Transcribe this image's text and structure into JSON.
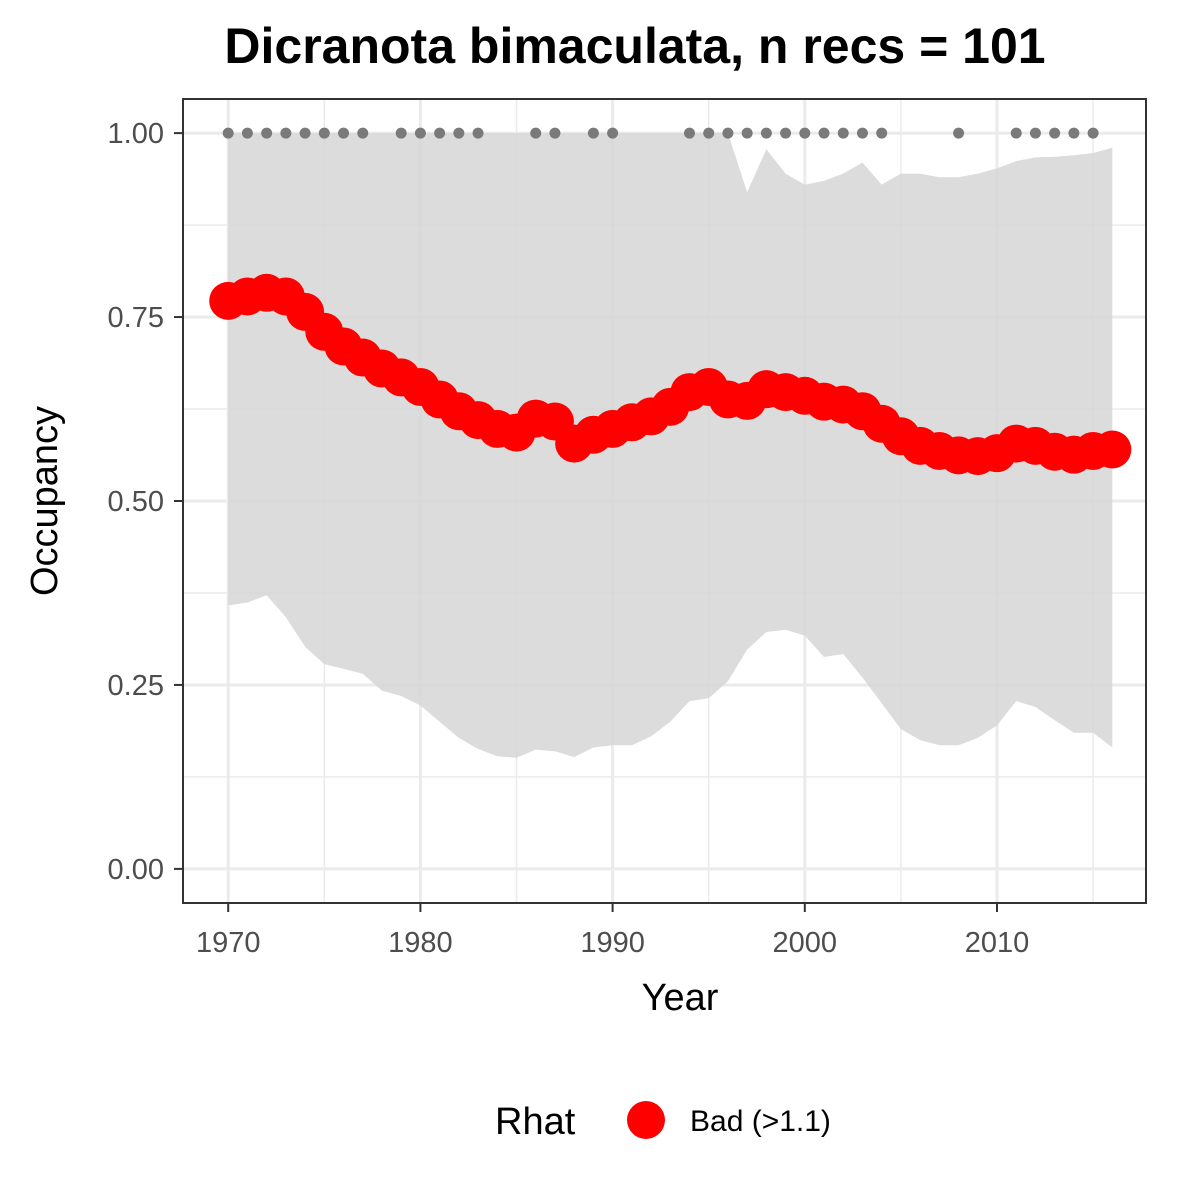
{
  "chart_data": {
    "type": "line",
    "title": "Dicranota bimaculata, n recs = 101",
    "xlabel": "Year",
    "ylabel": "Occupancy",
    "xlim": [
      1967.7,
      2017.7
    ],
    "ylim": [
      -0.045,
      1.045
    ],
    "x_ticks": [
      1970,
      1980,
      1990,
      2000,
      2010
    ],
    "x_tick_labels": [
      "1970",
      "1980",
      "1990",
      "2000",
      "2010"
    ],
    "y_ticks": [
      0,
      0.25,
      0.5,
      0.75,
      1.0
    ],
    "y_tick_labels": [
      "0.00",
      "0.25",
      "0.50",
      "0.75",
      "1.00"
    ],
    "grid": true,
    "legend": {
      "position": "bottom",
      "title": "Rhat",
      "entries": [
        {
          "label": "Bad (>1.1)",
          "color": "#ff0000"
        }
      ]
    },
    "colors": {
      "line": "#ff0000",
      "band": "#d6d6d6",
      "record_dots": "#7a7a7a",
      "grid": "#ebebeb",
      "panel_border": "#333333"
    },
    "series": [
      {
        "name": "Occupancy",
        "x": [
          1970,
          1971,
          1972,
          1973,
          1974,
          1975,
          1976,
          1977,
          1978,
          1979,
          1980,
          1981,
          1982,
          1983,
          1984,
          1985,
          1986,
          1987,
          1988,
          1989,
          1990,
          1991,
          1992,
          1993,
          1994,
          1995,
          1996,
          1997,
          1998,
          1999,
          2000,
          2001,
          2002,
          2003,
          2004,
          2005,
          2006,
          2007,
          2008,
          2009,
          2010,
          2011,
          2012,
          2013,
          2014,
          2015,
          2016
        ],
        "y": [
          0.772,
          0.778,
          0.783,
          0.778,
          0.757,
          0.73,
          0.71,
          0.695,
          0.68,
          0.668,
          0.655,
          0.638,
          0.622,
          0.61,
          0.598,
          0.593,
          0.612,
          0.608,
          0.578,
          0.59,
          0.598,
          0.607,
          0.615,
          0.628,
          0.648,
          0.655,
          0.638,
          0.636,
          0.652,
          0.648,
          0.643,
          0.635,
          0.631,
          0.622,
          0.605,
          0.588,
          0.575,
          0.568,
          0.562,
          0.561,
          0.565,
          0.578,
          0.575,
          0.567,
          0.563,
          0.568,
          0.57
        ]
      }
    ],
    "credible_interval": {
      "x": [
        1970,
        1971,
        1972,
        1973,
        1974,
        1975,
        1976,
        1977,
        1978,
        1979,
        1980,
        1981,
        1982,
        1983,
        1984,
        1985,
        1986,
        1987,
        1988,
        1989,
        1990,
        1991,
        1992,
        1993,
        1994,
        1995,
        1996,
        1997,
        1998,
        1999,
        2000,
        2001,
        2002,
        2003,
        2004,
        2005,
        2006,
        2007,
        2008,
        2009,
        2010,
        2011,
        2012,
        2013,
        2014,
        2015,
        2016
      ],
      "lower": [
        0.358,
        0.362,
        0.372,
        0.342,
        0.302,
        0.278,
        0.272,
        0.265,
        0.242,
        0.235,
        0.222,
        0.2,
        0.178,
        0.163,
        0.153,
        0.151,
        0.162,
        0.16,
        0.152,
        0.165,
        0.168,
        0.168,
        0.18,
        0.2,
        0.228,
        0.232,
        0.255,
        0.298,
        0.322,
        0.325,
        0.317,
        0.288,
        0.292,
        0.26,
        0.225,
        0.19,
        0.175,
        0.168,
        0.168,
        0.178,
        0.195,
        0.228,
        0.22,
        0.202,
        0.185,
        0.185,
        0.165
      ],
      "upper": [
        1.0,
        1.0,
        1.0,
        1.0,
        1.0,
        1.0,
        1.0,
        1.0,
        1.0,
        1.0,
        1.0,
        1.0,
        1.0,
        1.0,
        1.0,
        1.0,
        1.0,
        1.0,
        1.0,
        1.0,
        1.0,
        1.0,
        1.0,
        1.0,
        1.0,
        1.0,
        1.0,
        0.92,
        0.978,
        0.945,
        0.93,
        0.935,
        0.945,
        0.96,
        0.93,
        0.945,
        0.945,
        0.94,
        0.94,
        0.945,
        0.952,
        0.962,
        0.967,
        0.968,
        0.97,
        0.973,
        0.98
      ]
    },
    "record_years": [
      1970,
      1971,
      1972,
      1973,
      1974,
      1975,
      1976,
      1977,
      1979,
      1980,
      1981,
      1982,
      1983,
      1986,
      1987,
      1989,
      1990,
      1994,
      1995,
      1996,
      1997,
      1998,
      1999,
      2000,
      2001,
      2002,
      2003,
      2004,
      2008,
      2011,
      2012,
      2013,
      2014,
      2015
    ],
    "record_level": 1.0
  }
}
